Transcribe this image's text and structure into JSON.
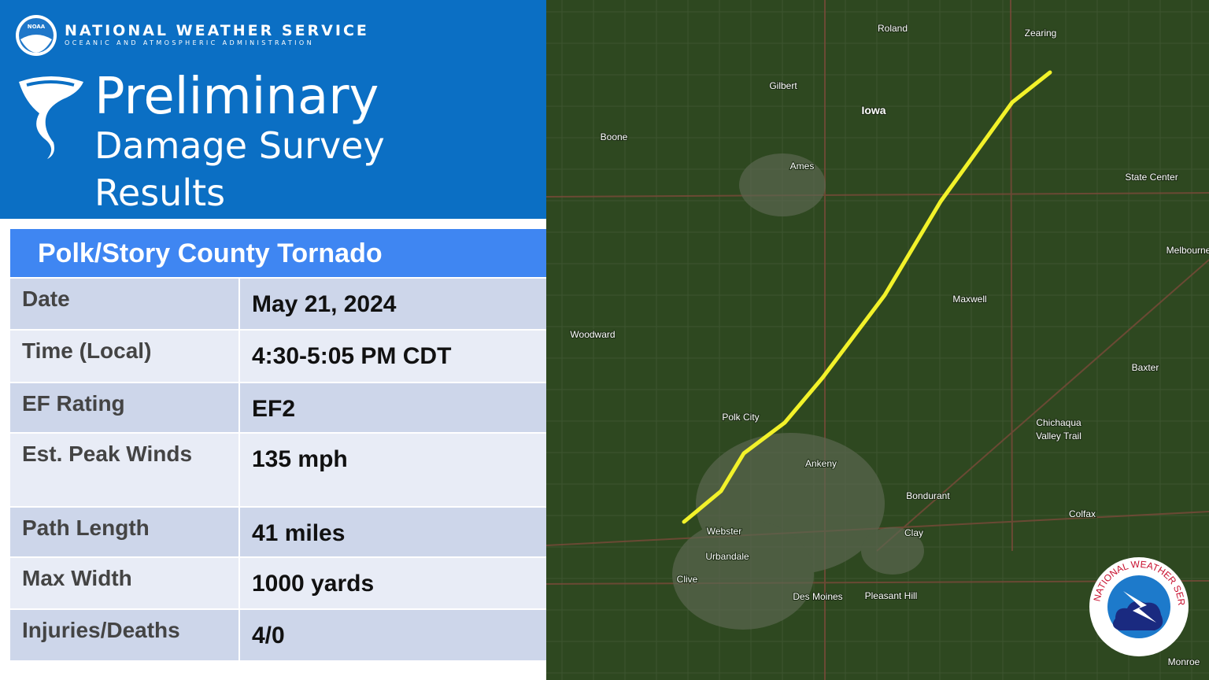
{
  "header": {
    "agency": "NATIONAL WEATHER SERVICE",
    "agency_sub": "OCEANIC AND ATMOSPHERIC ADMINISTRATION",
    "noaa_logo": "NOAA",
    "title_line1": "Preliminary",
    "title_line2": "Damage Survey",
    "title_line3": "Results"
  },
  "table": {
    "title": "Polk/Story County Tornado",
    "rows": [
      [
        "Date",
        "May 21, 2024"
      ],
      [
        "Time (Local)",
        "4:30-5:05 PM CDT"
      ],
      [
        "EF Rating",
        "EF2"
      ],
      [
        "Est. Peak Winds",
        "135 mph"
      ],
      [
        "Path Length",
        "41 miles"
      ],
      [
        "Max Width",
        "1000 yards"
      ],
      [
        "Injuries/Deaths",
        "4/0"
      ]
    ]
  },
  "map": {
    "labels": [
      "Roland",
      "Zearing",
      "Gilbert",
      "Iowa",
      "Boone",
      "Ames",
      "State Center",
      "Melbourne",
      "Maxwell",
      "Woodward",
      "Baxter",
      "Chichaqua",
      "Valley Trail",
      "Polk City",
      "Ankeny",
      "Bondurant",
      "Colfax",
      "Webster",
      "Clay",
      "Urbandale",
      "Clive",
      "Des Moines",
      "Pleasant Hill",
      "Monroe"
    ],
    "logo_text": "NATIONAL WEATHER SERVICE"
  }
}
